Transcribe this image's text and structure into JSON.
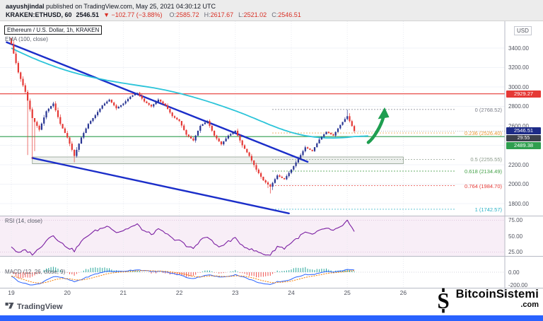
{
  "header": {
    "author": "aayushjindal",
    "published_rest": " published on TradingView.com, May 25, 2021 04:30:12 UTC",
    "symbol": "KRAKEN:ETHUSD, 60",
    "last": "2546.51",
    "change": "▼ −102.77 (−3.88%)",
    "o_label": "O:",
    "o_value": "2585.72",
    "h_label": "H:",
    "h_value": "2617.67",
    "l_label": "L:",
    "l_value": "2521.02",
    "c_label": "C:",
    "c_value": "2546.51"
  },
  "chart": {
    "title": "Ethereum / U.S. Dollar, 1h, KRAKEN",
    "ema_label": "EMA (100, close)",
    "rsi_label": "RSI (14, close)",
    "macd_label": "MACD (12, 26, close, 9)",
    "axis": {
      "currency": "USD",
      "price_ticks": [
        "3400.00",
        "3200.00",
        "3000.00",
        "2800.00",
        "2600.00",
        "2400.00",
        "2200.00",
        "2000.00",
        "1800.00"
      ],
      "rsi_ticks": [
        "75.00",
        "50.00",
        "25.00"
      ],
      "macd_ticks": [
        "0.00",
        "-200.00"
      ],
      "badges": {
        "resistance": "2929.27",
        "last": "2546.51",
        "countdown": "29:55",
        "support": "2489.38"
      },
      "time_ticks": [
        "19",
        "20",
        "21",
        "22",
        "23",
        "24",
        "25",
        "26"
      ]
    }
  },
  "chart_data": {
    "type": "candlestick",
    "symbol": "KRAKEN:ETHUSD",
    "interval": "1h",
    "title": "Ethereum / U.S. Dollar, 1h, KRAKEN",
    "x_axis_days": [
      "19",
      "20",
      "21",
      "22",
      "23",
      "24",
      "25",
      "26"
    ],
    "price_axis_ticks": [
      3400,
      3200,
      3000,
      2800,
      2600,
      2400,
      2200,
      2000,
      1800
    ],
    "candles_count": 148,
    "first_candle_time": "May 19 00:00 UTC",
    "waypoint_step_hours": 3,
    "close_waypoints": [
      3440,
      3150,
      2950,
      2680,
      2560,
      2750,
      2830,
      2620,
      2480,
      2290,
      2480,
      2620,
      2710,
      2810,
      2870,
      2780,
      2830,
      2900,
      2940,
      2850,
      2800,
      2870,
      2810,
      2700,
      2650,
      2510,
      2450,
      2600,
      2650,
      2500,
      2410,
      2500,
      2550,
      2400,
      2290,
      2150,
      2040,
      1975,
      2090,
      2050,
      2150,
      2260,
      2380,
      2340,
      2460,
      2540,
      2500,
      2610,
      2700,
      2546.51
    ],
    "ema100_waypoints": [
      3400,
      3365,
      3332,
      3300,
      3270,
      3242,
      3215,
      3190,
      3167,
      3146,
      3127,
      3109,
      3093,
      3078,
      3064,
      3051,
      3039,
      3028,
      3017,
      3006,
      2995,
      2982,
      2968,
      2952,
      2935,
      2916,
      2896,
      2875,
      2853,
      2830,
      2806,
      2781,
      2755,
      2728,
      2699,
      2669,
      2639,
      2609,
      2581,
      2556,
      2533,
      2514,
      2499,
      2488,
      2480,
      2476,
      2475,
      2477,
      2482,
      2490
    ],
    "rsi14_waypoints": [
      34,
      23,
      28,
      22,
      30,
      44,
      52,
      40,
      33,
      27,
      41,
      52,
      58,
      63,
      66,
      56,
      59,
      64,
      68,
      58,
      53,
      60,
      55,
      46,
      44,
      34,
      31,
      44,
      49,
      38,
      33,
      42,
      46,
      36,
      30,
      26,
      22,
      20,
      34,
      31,
      40,
      48,
      56,
      52,
      58,
      63,
      58,
      64,
      74,
      56
    ],
    "macd_waypoints": [
      -60,
      -140,
      -180,
      -200,
      -185,
      -120,
      -70,
      -80,
      -110,
      -150,
      -115,
      -70,
      -30,
      0,
      20,
      10,
      15,
      30,
      40,
      25,
      10,
      15,
      5,
      -20,
      -40,
      -80,
      -100,
      -70,
      -40,
      -60,
      -80,
      -60,
      -40,
      -70,
      -110,
      -150,
      -180,
      -200,
      -150,
      -140,
      -110,
      -70,
      -30,
      -40,
      -10,
      10,
      0,
      20,
      45,
      30
    ],
    "key_extremes": [
      {
        "h": 7,
        "low": 2300
      },
      {
        "h": 9,
        "low": 2255
      },
      {
        "h": 10,
        "low": 2340
      },
      {
        "h": 27,
        "low": 2225
      },
      {
        "h": 55,
        "high": 2950
      },
      {
        "h": 56,
        "high": 2935
      },
      {
        "h": 110,
        "low": 1960
      },
      {
        "h": 111,
        "low": 1905
      },
      {
        "h": 112,
        "low": 1940
      },
      {
        "h": 144,
        "high": 2768
      },
      {
        "h": 145,
        "high": 2730
      }
    ],
    "last_close": 2546.51,
    "ohlc_current_bar": {
      "open": 2585.72,
      "high": 2617.67,
      "low": 2521.02,
      "close": 2546.51
    },
    "change": -102.77,
    "change_pct": -3.88,
    "horizontal_lines": [
      {
        "name": "resistance",
        "price": 2929.27,
        "color": "#e53935"
      },
      {
        "name": "support",
        "price": 2489.38,
        "color": "#2f9e4f"
      }
    ],
    "fib_retracement": [
      {
        "level": "0",
        "price": 2768.52,
        "label": "0 (2768.52)",
        "color": "#787b86"
      },
      {
        "level": "0.236",
        "price": 2526.4,
        "label": "0.236 (2526.40)",
        "color": "#e8962e"
      },
      {
        "level": "0.5",
        "price": 2255.55,
        "label": "0.5 (2255.55)",
        "color": "#8a9a8a"
      },
      {
        "level": "0.618",
        "price": 2134.49,
        "label": "0.618 (2134.49)",
        "color": "#43a047"
      },
      {
        "level": "0.764",
        "price": 1984.7,
        "label": "0.764 (1984.70)",
        "color": "#e53935"
      },
      {
        "level": "1",
        "price": 1742.57,
        "label": "1 (1742.57)",
        "color": "#26b0c4"
      }
    ],
    "trendlines": [
      {
        "name": "upper-channel",
        "h1": -2,
        "p1": 3460,
        "h2": 127,
        "p2": 2230,
        "color": "#1b2ec9"
      },
      {
        "name": "lower-channel",
        "h1": 9,
        "p1": 2270,
        "h2": 119,
        "p2": 1700,
        "color": "#1b2ec9"
      }
    ],
    "support_zone": {
      "h1": 9,
      "h2": 168,
      "price_top": 2280,
      "price_bottom": 2210
    },
    "arrow": {
      "h1": 153,
      "p1": 2430,
      "h2": 160,
      "p2": 2790
    },
    "indicators": {
      "ema": "EMA (100, close)",
      "rsi": "RSI (14, close)",
      "macd": "MACD (12, 26, close, 9)"
    },
    "rsi_axis_ticks": [
      75,
      50,
      25
    ],
    "macd_axis_ticks": [
      0,
      -200
    ]
  },
  "footer": {
    "tradingview_label": "TradingView",
    "watermark_symbol": "S",
    "watermark_name": "BitcoinSistemi",
    "watermark_tld": ".com"
  },
  "colors": {
    "candle_up": "#283593",
    "candle_down": "#e53935",
    "ema": "#2bc4d9",
    "trendline": "#1b2ec9",
    "resistance": "#e53935",
    "support": "#2f9e4f",
    "rsi": "#7b1fa2",
    "macd": "#2962ff",
    "macd_signal": "#f57c00",
    "macd_hist_neg": "#ef5350",
    "macd_hist_pos": "#26a69a",
    "arrow": "#1e9e50",
    "bottom_bar": "#2962ff"
  }
}
